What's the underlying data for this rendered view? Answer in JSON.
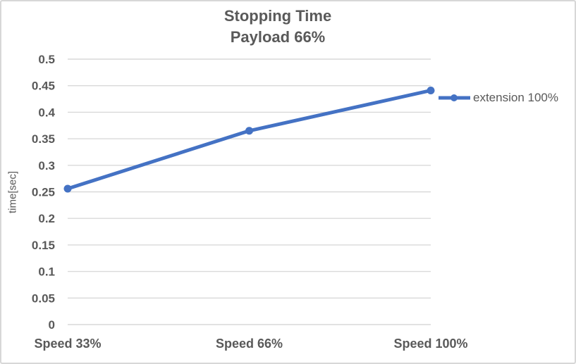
{
  "chart_data": {
    "type": "line",
    "title": "Stopping Time\nPayload 66%",
    "title_lines": [
      "Stopping Time",
      "Payload 66%"
    ],
    "categories": [
      "Speed 33%",
      "Speed 66%",
      "Speed 100%"
    ],
    "series": [
      {
        "name": "extension 100%",
        "values": [
          0.256,
          0.365,
          0.441
        ],
        "color": "#4472C4"
      }
    ],
    "xlabel": "",
    "ylabel": "time[sec]",
    "ylim": [
      0,
      0.5
    ],
    "ytick_step": 0.05,
    "ytick_labels": [
      "0",
      "0.05",
      "0.1",
      "0.15",
      "0.2",
      "0.25",
      "0.3",
      "0.35",
      "0.4",
      "0.45",
      "0.5"
    ],
    "grid": "horizontal-only",
    "legend_position": "right-middle"
  },
  "colors": {
    "series_line": "#4472C4",
    "gridline": "#d9d9d9",
    "text": "#595959",
    "frame_border": "#d7d7d7",
    "background": "#ffffff"
  }
}
